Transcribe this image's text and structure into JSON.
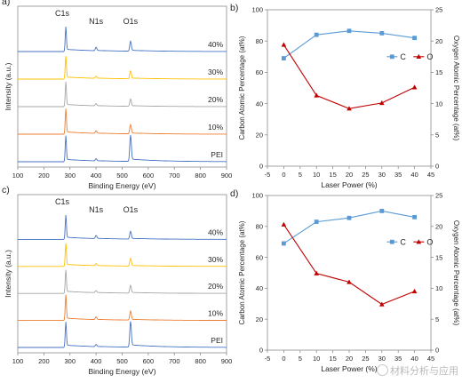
{
  "panels": {
    "a": {
      "letter": "a)"
    },
    "b": {
      "letter": "b)"
    },
    "c": {
      "letter": "c)"
    },
    "d": {
      "letter": "d)"
    }
  },
  "chart_data": [
    {
      "panel": "a",
      "type": "line",
      "title": "",
      "xlabel": "Binding Energy (eV)",
      "ylabel": "Intensity (a.u.)",
      "xlim": [
        100,
        900
      ],
      "xticks": [
        100,
        200,
        300,
        400,
        500,
        600,
        700,
        800,
        900
      ],
      "grid": false,
      "peak_labels": [
        {
          "text": "C1s",
          "x": 284
        },
        {
          "text": "N1s",
          "x": 400
        },
        {
          "text": "O1s",
          "x": 532
        }
      ],
      "series": [
        {
          "name": "40%",
          "color": "#4472c4",
          "peaks": [
            {
              "x": 284,
              "h": 0.95
            },
            {
              "x": 400,
              "h": 0.13
            },
            {
              "x": 532,
              "h": 0.38
            }
          ]
        },
        {
          "name": "30%",
          "color": "#ffc000",
          "peaks": [
            {
              "x": 284,
              "h": 0.88
            },
            {
              "x": 400,
              "h": 0.08
            },
            {
              "x": 532,
              "h": 0.3
            }
          ]
        },
        {
          "name": "20%",
          "color": "#a5a5a5",
          "peaks": [
            {
              "x": 284,
              "h": 0.95
            },
            {
              "x": 400,
              "h": 0.08
            },
            {
              "x": 532,
              "h": 0.28
            }
          ]
        },
        {
          "name": "10%",
          "color": "#ed7d31",
          "peaks": [
            {
              "x": 284,
              "h": 0.98
            },
            {
              "x": 400,
              "h": 0.1
            },
            {
              "x": 532,
              "h": 0.35
            }
          ]
        },
        {
          "name": "PEI",
          "color": "#4472c4",
          "peaks": [
            {
              "x": 284,
              "h": 1.0
            },
            {
              "x": 400,
              "h": 0.08
            },
            {
              "x": 532,
              "h": 1.0
            }
          ]
        }
      ]
    },
    {
      "panel": "b",
      "type": "line",
      "title": "",
      "xlabel": "Laser Power (%)",
      "ylabel": "Carbon Atomic Percentage (at%)",
      "y2label": "Oxygen Atomic Percentage (at%)",
      "xlim": [
        -5,
        45
      ],
      "xticks": [
        -5,
        0,
        5,
        10,
        15,
        20,
        25,
        30,
        35,
        40,
        45
      ],
      "ylim": [
        0,
        100
      ],
      "yticks": [
        0,
        20,
        40,
        60,
        80,
        100
      ],
      "y2lim": [
        0,
        25
      ],
      "y2ticks": [
        0,
        5,
        10,
        15,
        20,
        25
      ],
      "grid": false,
      "legend": "right",
      "series": [
        {
          "name": "C",
          "axis": "left",
          "color": "#5b9bd5",
          "marker": "square",
          "x": [
            0,
            10,
            20,
            30,
            40
          ],
          "values": [
            69,
            84,
            86.5,
            85,
            82
          ]
        },
        {
          "name": "O",
          "axis": "right",
          "color": "#c00000",
          "marker": "triangle",
          "x": [
            0,
            10,
            20,
            30,
            40
          ],
          "values": [
            19.4,
            11.3,
            9.2,
            10.1,
            12.6
          ]
        }
      ]
    },
    {
      "panel": "c",
      "type": "line",
      "title": "",
      "xlabel": "Binding Energy (eV)",
      "ylabel": "Intensity (a.u.)",
      "xlim": [
        100,
        900
      ],
      "xticks": [
        100,
        200,
        300,
        400,
        500,
        600,
        700,
        800,
        900
      ],
      "grid": false,
      "peak_labels": [
        {
          "text": "C1s",
          "x": 284
        },
        {
          "text": "N1s",
          "x": 400
        },
        {
          "text": "O1s",
          "x": 532
        }
      ],
      "series": [
        {
          "name": "40%",
          "color": "#4472c4",
          "peaks": [
            {
              "x": 284,
              "h": 0.95
            },
            {
              "x": 400,
              "h": 0.12
            },
            {
              "x": 532,
              "h": 0.3
            }
          ]
        },
        {
          "name": "30%",
          "color": "#ffc000",
          "peaks": [
            {
              "x": 284,
              "h": 0.9
            },
            {
              "x": 400,
              "h": 0.08
            },
            {
              "x": 532,
              "h": 0.3
            }
          ]
        },
        {
          "name": "20%",
          "color": "#a5a5a5",
          "peaks": [
            {
              "x": 284,
              "h": 0.92
            },
            {
              "x": 400,
              "h": 0.08
            },
            {
              "x": 532,
              "h": 0.3
            }
          ]
        },
        {
          "name": "10%",
          "color": "#ed7d31",
          "peaks": [
            {
              "x": 284,
              "h": 1.0
            },
            {
              "x": 400,
              "h": 0.1
            },
            {
              "x": 532,
              "h": 0.35
            }
          ]
        },
        {
          "name": "PEI",
          "color": "#4472c4",
          "peaks": [
            {
              "x": 284,
              "h": 1.0
            },
            {
              "x": 400,
              "h": 0.08
            },
            {
              "x": 532,
              "h": 1.0
            }
          ]
        }
      ]
    },
    {
      "panel": "d",
      "type": "line",
      "title": "",
      "xlabel": "Laser Power (%)",
      "ylabel": "Carbon Atomic Percentage (at%)",
      "y2label": "Oxygen Atomic Percentage (at%)",
      "xlim": [
        -5,
        45
      ],
      "xticks": [
        -5,
        0,
        5,
        10,
        15,
        20,
        25,
        30,
        35,
        40,
        45
      ],
      "ylim": [
        0,
        100
      ],
      "yticks": [
        0,
        20,
        40,
        60,
        80,
        100
      ],
      "y2lim": [
        0,
        25
      ],
      "y2ticks": [
        0,
        5,
        10,
        15,
        20,
        25
      ],
      "grid": false,
      "legend": "right",
      "series": [
        {
          "name": "C",
          "axis": "left",
          "color": "#5b9bd5",
          "marker": "square",
          "x": [
            0,
            10,
            20,
            30,
            40
          ],
          "values": [
            69,
            83,
            85.5,
            90,
            86
          ]
        },
        {
          "name": "O",
          "axis": "right",
          "color": "#c00000",
          "marker": "triangle",
          "x": [
            0,
            10,
            20,
            30,
            40
          ],
          "values": [
            20.3,
            12.4,
            11.0,
            7.4,
            9.5
          ]
        }
      ]
    }
  ],
  "watermark": {
    "text": "材料分析与应用"
  }
}
